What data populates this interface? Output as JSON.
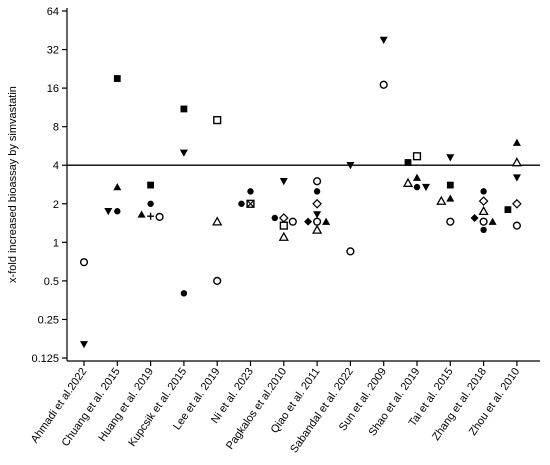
{
  "chart_data": {
    "type": "scatter",
    "title": "",
    "ylabel": "x-fold increased bioassay by simvastatin",
    "xlabel": "",
    "yscale": "log2",
    "ylim": [
      0.125,
      64
    ],
    "yticks": [
      "0.125",
      "0.25",
      "0.5",
      "1",
      "2",
      "4",
      "8",
      "16",
      "32",
      "64"
    ],
    "reference_line": 4,
    "grid": false,
    "categories": [
      "Ahmadi et al.2022",
      "Chuang et al. 2015",
      "Huang et al. 2019",
      "Kupcsik et al. 2015",
      "Lee et al. 2019",
      "Ni et al. 2023",
      "Pagkalos et al.2010",
      "Qiao et al. 2011",
      "Sabandal et al. 2022",
      "Sun et al. 2009",
      "Shao et al. 2019",
      "Tai et al. 2015",
      "Zhang et al. 2018",
      "Zhou et al. 2010"
    ],
    "points": [
      {
        "category": 0,
        "y": 0.7,
        "marker": "open-circle"
      },
      {
        "category": 0,
        "y": 0.16,
        "marker": "down-triangle"
      },
      {
        "category": 1,
        "y": 19,
        "marker": "square"
      },
      {
        "category": 1,
        "y": 2.7,
        "marker": "triangle"
      },
      {
        "category": 1,
        "y": 1.75,
        "marker": "circle"
      },
      {
        "category": 1,
        "y": 1.75,
        "marker": "down-triangle"
      },
      {
        "category": 2,
        "y": 2.8,
        "marker": "square"
      },
      {
        "category": 2,
        "y": 2.0,
        "marker": "circle"
      },
      {
        "category": 2,
        "y": 1.6,
        "marker": "plus"
      },
      {
        "category": 2,
        "y": 1.65,
        "marker": "triangle"
      },
      {
        "category": 2,
        "y": 1.58,
        "marker": "open-circle"
      },
      {
        "category": 3,
        "y": 11,
        "marker": "square"
      },
      {
        "category": 3,
        "y": 5.0,
        "marker": "down-triangle"
      },
      {
        "category": 3,
        "y": 0.4,
        "marker": "circle"
      },
      {
        "category": 4,
        "y": 9.0,
        "marker": "open-square"
      },
      {
        "category": 4,
        "y": 1.45,
        "marker": "open-triangle"
      },
      {
        "category": 4,
        "y": 0.5,
        "marker": "open-circle"
      },
      {
        "category": 5,
        "y": 2.5,
        "marker": "circle"
      },
      {
        "category": 5,
        "y": 2.0,
        "marker": "x-square"
      },
      {
        "category": 5,
        "y": 2.0,
        "marker": "circle"
      },
      {
        "category": 6,
        "y": 3.0,
        "marker": "down-triangle"
      },
      {
        "category": 6,
        "y": 1.55,
        "marker": "open-diamond"
      },
      {
        "category": 6,
        "y": 1.55,
        "marker": "circle"
      },
      {
        "category": 6,
        "y": 1.45,
        "marker": "open-circle"
      },
      {
        "category": 6,
        "y": 1.35,
        "marker": "open-square"
      },
      {
        "category": 6,
        "y": 1.1,
        "marker": "open-triangle"
      },
      {
        "category": 7,
        "y": 3.0,
        "marker": "open-circle"
      },
      {
        "category": 7,
        "y": 2.5,
        "marker": "circle"
      },
      {
        "category": 7,
        "y": 2.0,
        "marker": "open-diamond"
      },
      {
        "category": 7,
        "y": 1.65,
        "marker": "down-triangle"
      },
      {
        "category": 7,
        "y": 1.45,
        "marker": "open-circle"
      },
      {
        "category": 7,
        "y": 1.45,
        "marker": "diamond"
      },
      {
        "category": 7,
        "y": 1.45,
        "marker": "triangle"
      },
      {
        "category": 7,
        "y": 1.25,
        "marker": "open-triangle"
      },
      {
        "category": 8,
        "y": 4.0,
        "marker": "down-triangle"
      },
      {
        "category": 8,
        "y": 0.85,
        "marker": "open-circle"
      },
      {
        "category": 9,
        "y": 38,
        "marker": "down-triangle"
      },
      {
        "category": 9,
        "y": 17,
        "marker": "open-circle"
      },
      {
        "category": 10,
        "y": 4.7,
        "marker": "open-square"
      },
      {
        "category": 10,
        "y": 4.2,
        "marker": "square"
      },
      {
        "category": 10,
        "y": 3.2,
        "marker": "triangle"
      },
      {
        "category": 10,
        "y": 2.9,
        "marker": "open-triangle"
      },
      {
        "category": 10,
        "y": 2.7,
        "marker": "circle"
      },
      {
        "category": 10,
        "y": 2.7,
        "marker": "down-triangle"
      },
      {
        "category": 11,
        "y": 4.6,
        "marker": "down-triangle"
      },
      {
        "category": 11,
        "y": 2.8,
        "marker": "square"
      },
      {
        "category": 11,
        "y": 2.2,
        "marker": "triangle"
      },
      {
        "category": 11,
        "y": 2.1,
        "marker": "open-triangle"
      },
      {
        "category": 11,
        "y": 1.45,
        "marker": "open-circle"
      },
      {
        "category": 12,
        "y": 2.5,
        "marker": "circle"
      },
      {
        "category": 12,
        "y": 2.1,
        "marker": "open-diamond"
      },
      {
        "category": 12,
        "y": 1.75,
        "marker": "open-triangle"
      },
      {
        "category": 12,
        "y": 1.55,
        "marker": "diamond"
      },
      {
        "category": 12,
        "y": 1.45,
        "marker": "open-circle"
      },
      {
        "category": 12,
        "y": 1.45,
        "marker": "triangle"
      },
      {
        "category": 12,
        "y": 1.25,
        "marker": "circle"
      },
      {
        "category": 13,
        "y": 6.0,
        "marker": "triangle"
      },
      {
        "category": 13,
        "y": 4.2,
        "marker": "open-triangle"
      },
      {
        "category": 13,
        "y": 3.2,
        "marker": "down-triangle"
      },
      {
        "category": 13,
        "y": 2.0,
        "marker": "open-diamond"
      },
      {
        "category": 13,
        "y": 1.8,
        "marker": "square"
      },
      {
        "category": 13,
        "y": 1.35,
        "marker": "open-circle"
      }
    ]
  }
}
